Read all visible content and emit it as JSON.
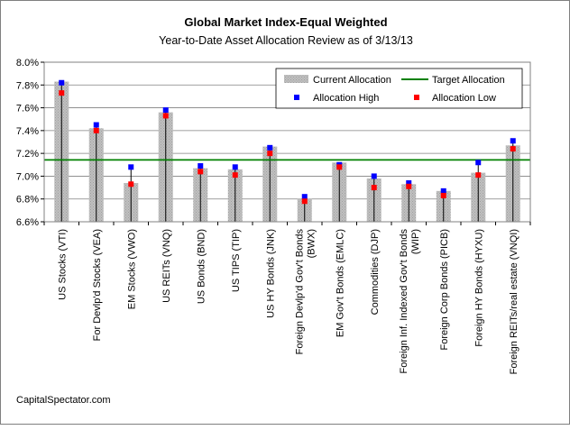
{
  "chart_data": {
    "type": "bar",
    "title": "Global Market Index-Equal Weighted",
    "subtitle": "Year-to-Date Asset Allocation Review as of 3/13/13",
    "source": "CapitalSpectator.com",
    "ylim": [
      6.6,
      8.0
    ],
    "ytick_step": 0.2,
    "y_tick_labels": [
      "6.6%",
      "6.8%",
      "7.0%",
      "7.2%",
      "7.4%",
      "7.6%",
      "7.8%",
      "8.0%"
    ],
    "grid": true,
    "legend_position": "top-right",
    "categories": [
      [
        "US Stocks (VTI)"
      ],
      [
        "For Devlp'd Stocks (VEA)"
      ],
      [
        "EM Stocks (VWO)"
      ],
      [
        "US REITs (VNQ)"
      ],
      [
        "US Bonds (BND)"
      ],
      [
        "US TIPS (TIP)"
      ],
      [
        "US HY Bonds (JNK)"
      ],
      [
        "Foreign Devlp'd Gov't Bonds",
        "(BWX)"
      ],
      [
        "EM Gov't Bonds (EMLC)"
      ],
      [
        "Commodities (DJP)"
      ],
      [
        "Foreign Inf. Indexed Gov't Bonds",
        "(WIP)"
      ],
      [
        "Foreign Corp Bonds (PICB)"
      ],
      [
        "Foreign HY Bonds (HYXU)"
      ],
      [
        "Foreign REITs/real estate (VNQI)"
      ]
    ],
    "series": [
      {
        "name": "Current Allocation",
        "kind": "bar",
        "color": "#c0c0c0",
        "values": [
          7.83,
          7.42,
          6.94,
          7.56,
          7.07,
          7.06,
          7.26,
          6.8,
          7.12,
          6.98,
          6.93,
          6.87,
          7.03,
          7.27
        ]
      },
      {
        "name": "Target Allocation",
        "kind": "line",
        "color": "#008000",
        "value": 7.143
      },
      {
        "name": "Allocation High",
        "kind": "marker",
        "color": "#0000ff",
        "values": [
          7.82,
          7.45,
          7.08,
          7.58,
          7.09,
          7.08,
          7.25,
          6.82,
          7.1,
          7.0,
          6.94,
          6.87,
          7.12,
          7.31
        ]
      },
      {
        "name": "Allocation Low",
        "kind": "marker",
        "color": "#ff0000",
        "values": [
          7.73,
          7.4,
          6.93,
          7.53,
          7.04,
          7.01,
          7.2,
          6.78,
          7.08,
          6.9,
          6.91,
          6.83,
          7.01,
          7.24
        ]
      }
    ]
  }
}
